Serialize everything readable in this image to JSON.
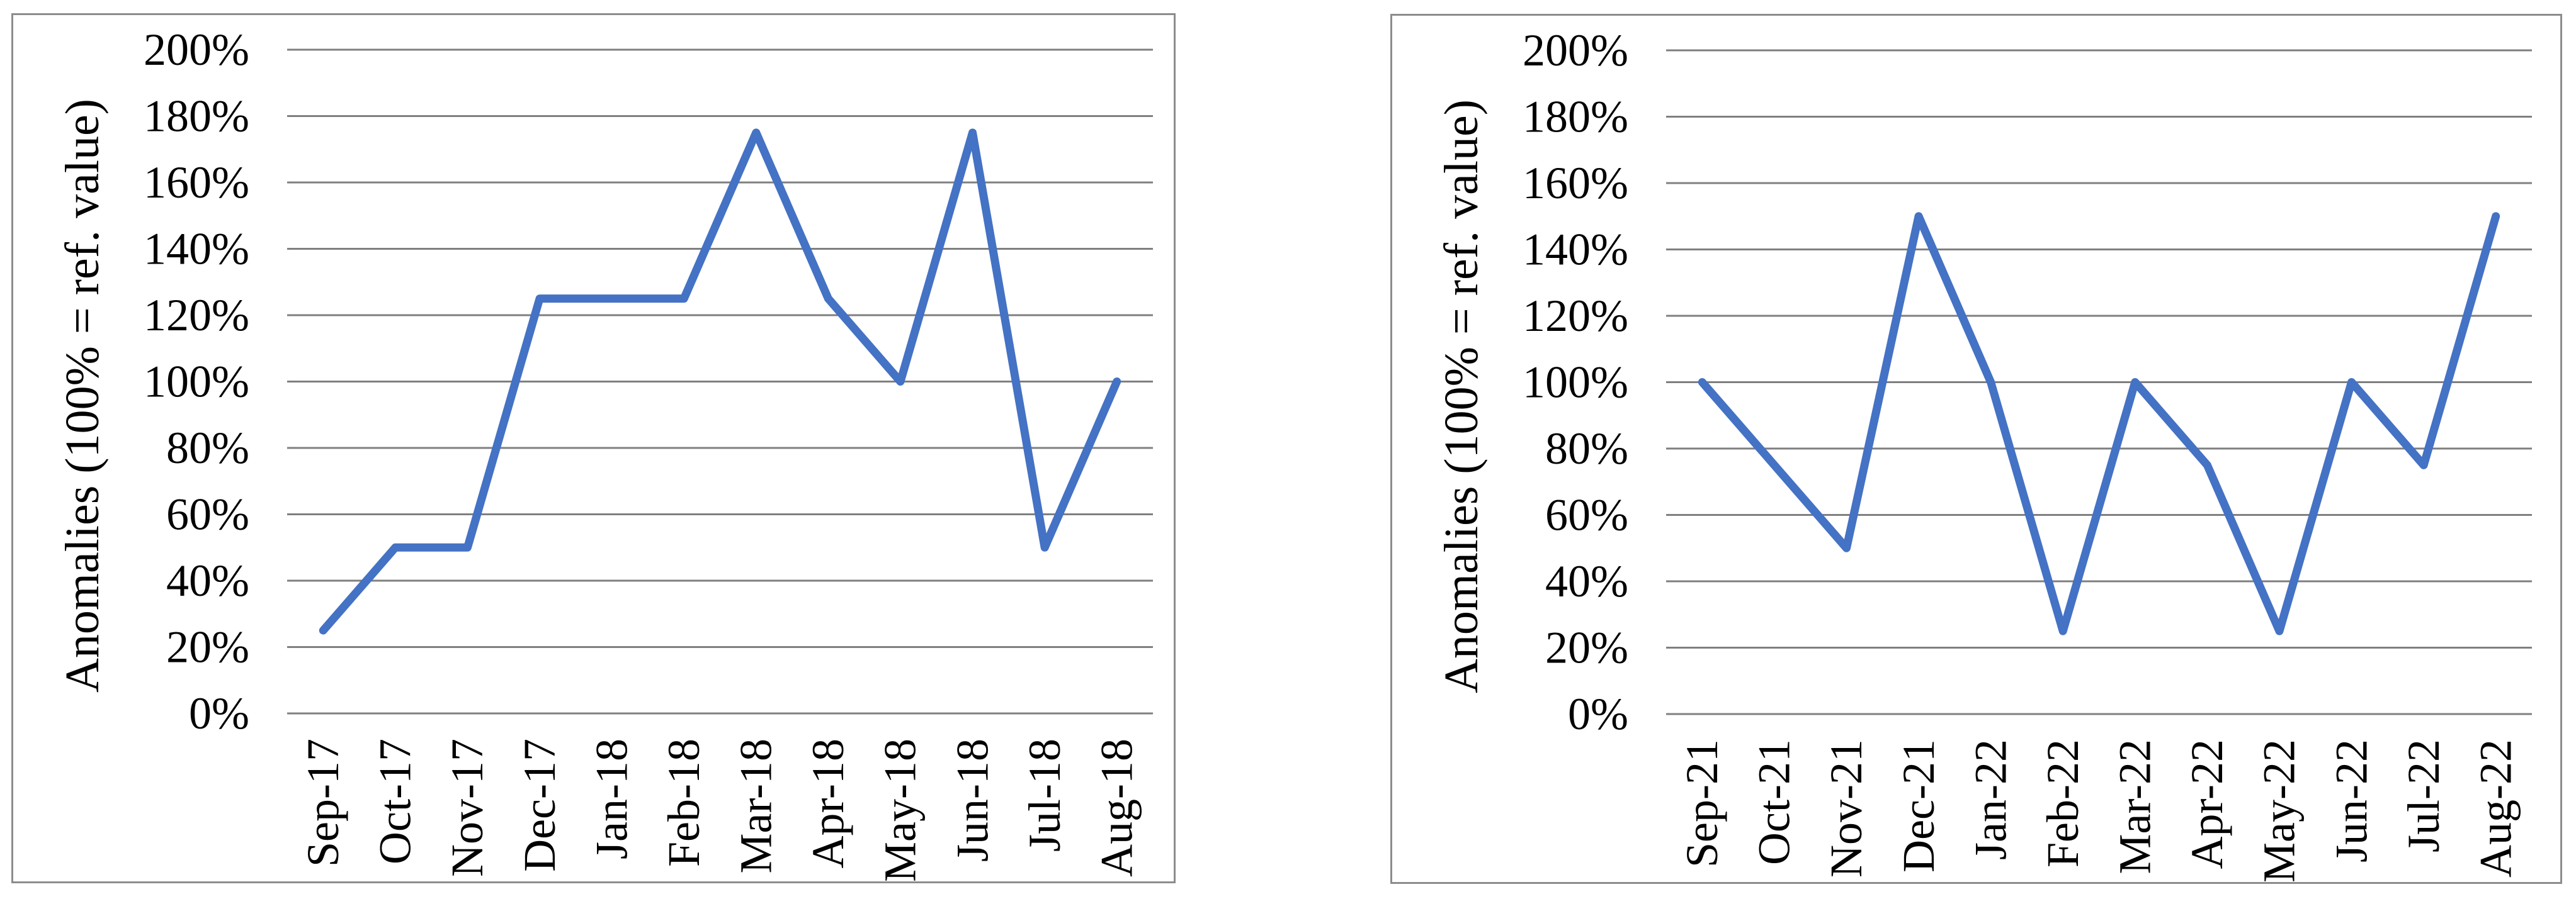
{
  "page": {
    "background": "#ffffff"
  },
  "chart_data": [
    {
      "type": "line",
      "title": "",
      "xlabel": "",
      "ylabel": "Anomalies (100% = ref. value)",
      "categories": [
        "Sep-17",
        "Oct-17",
        "Nov-17",
        "Dec-17",
        "Jan-18",
        "Feb-18",
        "Mar-18",
        "Apr-18",
        "May-18",
        "Jun-18",
        "Jul-18",
        "Aug-18"
      ],
      "values": [
        25,
        50,
        50,
        125,
        125,
        125,
        175,
        125,
        100,
        175,
        50,
        100
      ],
      "ylim": [
        0,
        200
      ],
      "y_tick_step": 20,
      "y_tick_labels": [
        "0%",
        "20%",
        "40%",
        "60%",
        "80%",
        "100%",
        "120%",
        "140%",
        "160%",
        "180%",
        "200%"
      ],
      "grid": true,
      "legend_position": "none",
      "line_color": "#4472C4",
      "grid_color": "#7F7F7F",
      "border_color": "#8C8C8C",
      "text_color": "#000000"
    },
    {
      "type": "line",
      "title": "",
      "xlabel": "",
      "ylabel": "Anomalies (100% = ref. value)",
      "categories": [
        "Sep-21",
        "Oct-21",
        "Nov-21",
        "Dec-21",
        "Jan-22",
        "Feb-22",
        "Mar-22",
        "Apr-22",
        "May-22",
        "Jun-22",
        "Jul-22",
        "Aug-22"
      ],
      "values": [
        100,
        75,
        50,
        150,
        100,
        25,
        100,
        75,
        25,
        100,
        75,
        150
      ],
      "ylim": [
        0,
        200
      ],
      "y_tick_step": 20,
      "y_tick_labels": [
        "0%",
        "20%",
        "40%",
        "60%",
        "80%",
        "100%",
        "120%",
        "140%",
        "160%",
        "180%",
        "200%"
      ],
      "grid": true,
      "legend_position": "none",
      "line_color": "#4472C4",
      "grid_color": "#7F7F7F",
      "border_color": "#8C8C8C",
      "text_color": "#000000"
    }
  ]
}
